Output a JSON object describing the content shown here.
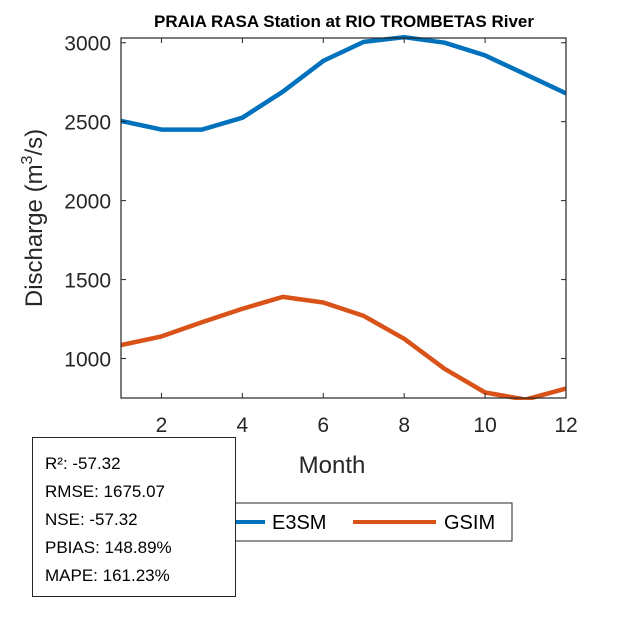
{
  "chart_data": {
    "type": "line",
    "title": "PRAIA RASA  Station at  RIO TROMBETAS  River",
    "xlabel": "Month",
    "ylabel": "Discharge (m³/s)",
    "ylabel_parts": {
      "base": "Discharge (m",
      "sup": "3",
      "tail": "/s)"
    },
    "x": [
      1,
      2,
      3,
      4,
      5,
      6,
      7,
      8,
      9,
      10,
      11,
      12
    ],
    "xlim": [
      1,
      12
    ],
    "ylim": [
      750,
      3030
    ],
    "xticks": [
      2,
      4,
      6,
      8,
      10,
      12
    ],
    "xtick_labels": [
      "2",
      "4",
      "6",
      "8",
      "10",
      "12"
    ],
    "yticks": [
      1000,
      1500,
      2000,
      2500,
      3000
    ],
    "ytick_labels": [
      "1000",
      "1500",
      "2000",
      "2500",
      "3000"
    ],
    "grid": false,
    "legend_position": "bottom-center",
    "series": [
      {
        "name": "E3SM",
        "color": "#0072BD",
        "values": [
          2505,
          2450,
          2450,
          2525,
          2690,
          2885,
          3005,
          3035,
          3000,
          2920,
          2800,
          2680
        ]
      },
      {
        "name": "GSIM",
        "color": "#D95319",
        "values": [
          1085,
          1140,
          1230,
          1315,
          1390,
          1355,
          1270,
          1125,
          935,
          785,
          740,
          810
        ]
      }
    ]
  },
  "stats": [
    "R²: -57.32",
    "RMSE: 1675.07",
    "NSE: -57.32",
    "PBIAS: 148.89%",
    "MAPE: 161.23%"
  ]
}
